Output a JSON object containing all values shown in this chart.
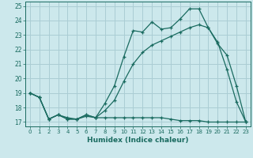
{
  "xlabel": "Humidex (Indice chaleur)",
  "bg_color": "#cce8ec",
  "grid_color": "#aacdd4",
  "line_color": "#1a6b60",
  "xlim": [
    -0.5,
    23.5
  ],
  "ylim": [
    16.7,
    25.3
  ],
  "xticks": [
    0,
    1,
    2,
    3,
    4,
    5,
    6,
    7,
    8,
    9,
    10,
    11,
    12,
    13,
    14,
    15,
    16,
    17,
    18,
    19,
    20,
    21,
    22,
    23
  ],
  "yticks": [
    17,
    18,
    19,
    20,
    21,
    22,
    23,
    24,
    25
  ],
  "line1_x": [
    0,
    1,
    2,
    3,
    4,
    5,
    6,
    7,
    8,
    9,
    10,
    11,
    12,
    13,
    14,
    15,
    16,
    17,
    18,
    19,
    20,
    21,
    22,
    23
  ],
  "line1_y": [
    19.0,
    18.7,
    17.2,
    17.5,
    17.2,
    17.2,
    17.5,
    17.3,
    18.3,
    19.5,
    21.5,
    23.3,
    23.2,
    23.9,
    23.4,
    23.5,
    24.1,
    24.8,
    24.8,
    23.5,
    22.5,
    20.6,
    18.4,
    17.0
  ],
  "line2_x": [
    0,
    1,
    2,
    3,
    4,
    5,
    6,
    7,
    8,
    9,
    10,
    11,
    12,
    13,
    14,
    15,
    16,
    17,
    18,
    19,
    20,
    21,
    22,
    23
  ],
  "line2_y": [
    19.0,
    18.7,
    17.2,
    17.5,
    17.2,
    17.2,
    17.4,
    17.3,
    17.3,
    17.3,
    17.3,
    17.3,
    17.3,
    17.3,
    17.3,
    17.2,
    17.1,
    17.1,
    17.1,
    17.0,
    17.0,
    17.0,
    17.0,
    17.0
  ],
  "line3_x": [
    0,
    1,
    2,
    3,
    4,
    5,
    6,
    7,
    8,
    9,
    10,
    11,
    12,
    13,
    14,
    15,
    16,
    17,
    18,
    19,
    20,
    21,
    22,
    23
  ],
  "line3_y": [
    19.0,
    18.7,
    17.2,
    17.5,
    17.3,
    17.2,
    17.5,
    17.3,
    17.8,
    18.5,
    19.8,
    21.0,
    21.8,
    22.3,
    22.6,
    22.9,
    23.2,
    23.5,
    23.7,
    23.5,
    22.4,
    21.6,
    19.5,
    17.0
  ]
}
